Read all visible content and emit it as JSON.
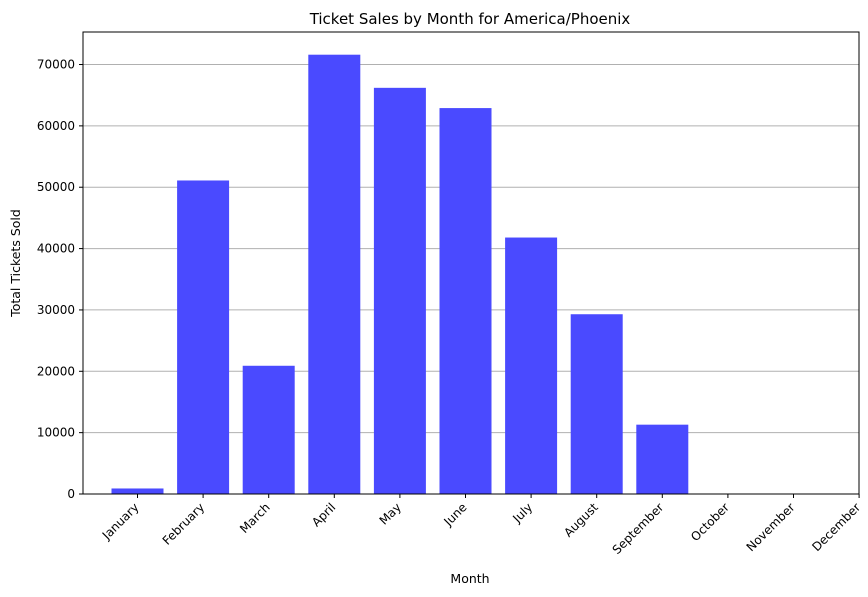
{
  "chart_data": {
    "type": "bar",
    "title": "Ticket Sales by Month for America/Phoenix",
    "xlabel": "Month",
    "ylabel": "Total Tickets Sold",
    "categories": [
      "January",
      "February",
      "March",
      "April",
      "May",
      "June",
      "July",
      "August",
      "September",
      "October",
      "November",
      "December"
    ],
    "values": [
      900,
      51100,
      20900,
      71600,
      66200,
      62900,
      41800,
      29300,
      11300,
      0,
      0,
      0
    ],
    "ylim": [
      0,
      75300
    ],
    "yticks": [
      0,
      10000,
      20000,
      30000,
      40000,
      50000,
      60000,
      70000
    ],
    "grid": "y",
    "bar_color": "#4a4aff",
    "grid_color": "#b0b0b0"
  }
}
